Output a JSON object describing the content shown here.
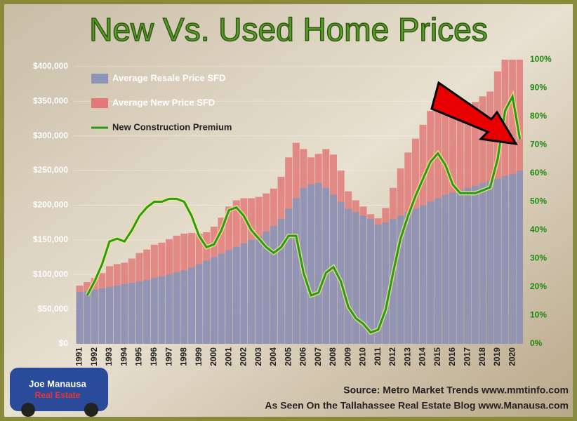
{
  "chart_data": {
    "type": "bar_line",
    "title": "New Vs. Used Home Prices",
    "x": [
      1991,
      1991.5,
      1992,
      1992.5,
      1993,
      1993.5,
      1994,
      1994.5,
      1995,
      1995.5,
      1996,
      1996.5,
      1997,
      1997.5,
      1998,
      1998.5,
      1999,
      1999.5,
      2000,
      2000.5,
      2001,
      2001.5,
      2002,
      2002.5,
      2003,
      2003.5,
      2004,
      2004.5,
      2005,
      2005.5,
      2006,
      2006.5,
      2007,
      2007.5,
      2008,
      2008.5,
      2009,
      2009.5,
      2010,
      2010.5,
      2011,
      2011.5,
      2012,
      2012.5,
      2013,
      2013.5,
      2014,
      2014.5,
      2015,
      2015.5,
      2016,
      2016.5,
      2017,
      2017.5,
      2018,
      2018.5,
      2019,
      2019.5,
      2020,
      2020.5
    ],
    "series": [
      {
        "name": "Average New Price SFD",
        "color": "#e07a78",
        "kind": "bar",
        "values": [
          84000,
          89000,
          95000,
          102000,
          112000,
          115000,
          117000,
          123000,
          131000,
          136000,
          143000,
          146000,
          151000,
          156000,
          159000,
          160000,
          159000,
          161000,
          169000,
          182000,
          198000,
          207000,
          210000,
          210000,
          212000,
          217000,
          224000,
          241000,
          269000,
          290000,
          281000,
          269000,
          274000,
          281000,
          273000,
          250000,
          220000,
          207000,
          198000,
          187000,
          181000,
          196000,
          225000,
          253000,
          276000,
          296000,
          316000,
          336000,
          351000,
          350000,
          340000,
          340000,
          344000,
          349000,
          357000,
          364000,
          393000,
          410000,
          410000,
          410000
        ]
      },
      {
        "name": "Average Resale Price SFD",
        "color": "#8a96b8",
        "kind": "bar",
        "values": [
          75000,
          76000,
          78000,
          80000,
          82000,
          84000,
          86000,
          88000,
          90000,
          92000,
          95000,
          97000,
          100000,
          103000,
          106000,
          110000,
          115000,
          120000,
          125000,
          130000,
          135000,
          140000,
          145000,
          150000,
          155000,
          162000,
          170000,
          180000,
          195000,
          210000,
          225000,
          230000,
          232000,
          225000,
          215000,
          205000,
          195000,
          190000,
          185000,
          180000,
          172000,
          175000,
          180000,
          185000,
          190000,
          195000,
          200000,
          205000,
          210000,
          215000,
          218000,
          222000,
          225000,
          228000,
          232000,
          235000,
          238000,
          242000,
          245000,
          250000
        ]
      },
      {
        "name": "New Construction Premium",
        "color": "#2a9a18",
        "kind": "line",
        "axis": "y2",
        "values": [
          null,
          17,
          22,
          28,
          36,
          37,
          36,
          40,
          45,
          48,
          50,
          50,
          51,
          51,
          50,
          45,
          38,
          34,
          35,
          40,
          47,
          48,
          45,
          40,
          37,
          34,
          32,
          34,
          38,
          38,
          25,
          17,
          18,
          25,
          27,
          22,
          13,
          9,
          7,
          4,
          5,
          12,
          25,
          37,
          45,
          52,
          58,
          64,
          67,
          63,
          56,
          53,
          53,
          53,
          54,
          55,
          65,
          82,
          87,
          72
        ]
      }
    ],
    "xlim": [
      1990.6,
      2020.7
    ],
    "xticks": [
      1991,
      1992,
      1993,
      1994,
      1995,
      1996,
      1997,
      1998,
      1999,
      2000,
      2001,
      2002,
      2003,
      2004,
      2005,
      2006,
      2007,
      2008,
      2009,
      2010,
      2011,
      2012,
      2013,
      2014,
      2015,
      2016,
      2017,
      2018,
      2019,
      2020
    ],
    "ylim": [
      0,
      410000
    ],
    "yticks": [
      0,
      {
        "value": 50000,
        "label": "$50,000"
      },
      {
        "value": 100000,
        "label": "$100,000"
      },
      {
        "value": 150000,
        "label": "$150,000"
      },
      {
        "value": 200000,
        "label": "$200,000"
      },
      {
        "value": 250000,
        "label": "$250,000"
      },
      {
        "value": 300000,
        "label": "$300,000"
      },
      {
        "value": 350000,
        "label": "$350,000"
      },
      {
        "value": 400000,
        "label": "$400,000"
      }
    ],
    "yticks_first_label": "$0",
    "y2lim": [
      0,
      100
    ],
    "y2ticks": [
      {
        "value": 0,
        "label": "0%"
      },
      {
        "value": 10,
        "label": "10%"
      },
      {
        "value": 20,
        "label": "20%"
      },
      {
        "value": 30,
        "label": "30%"
      },
      {
        "value": 40,
        "label": "40%"
      },
      {
        "value": 50,
        "label": "50%"
      },
      {
        "value": 60,
        "label": "60%"
      },
      {
        "value": 70,
        "label": "70%"
      },
      {
        "value": 80,
        "label": "80%"
      },
      {
        "value": 90,
        "label": "90%"
      },
      {
        "value": 100,
        "label": "100%"
      }
    ],
    "legend": "top-left",
    "annotations": [
      "Source: Metro Market Trends  www.mmtinfo.com",
      "As Seen On the Tallahassee Real Estate Blog  www.Manausa.com"
    ],
    "logo": [
      "Joe Manausa",
      "Real Estate"
    ]
  }
}
